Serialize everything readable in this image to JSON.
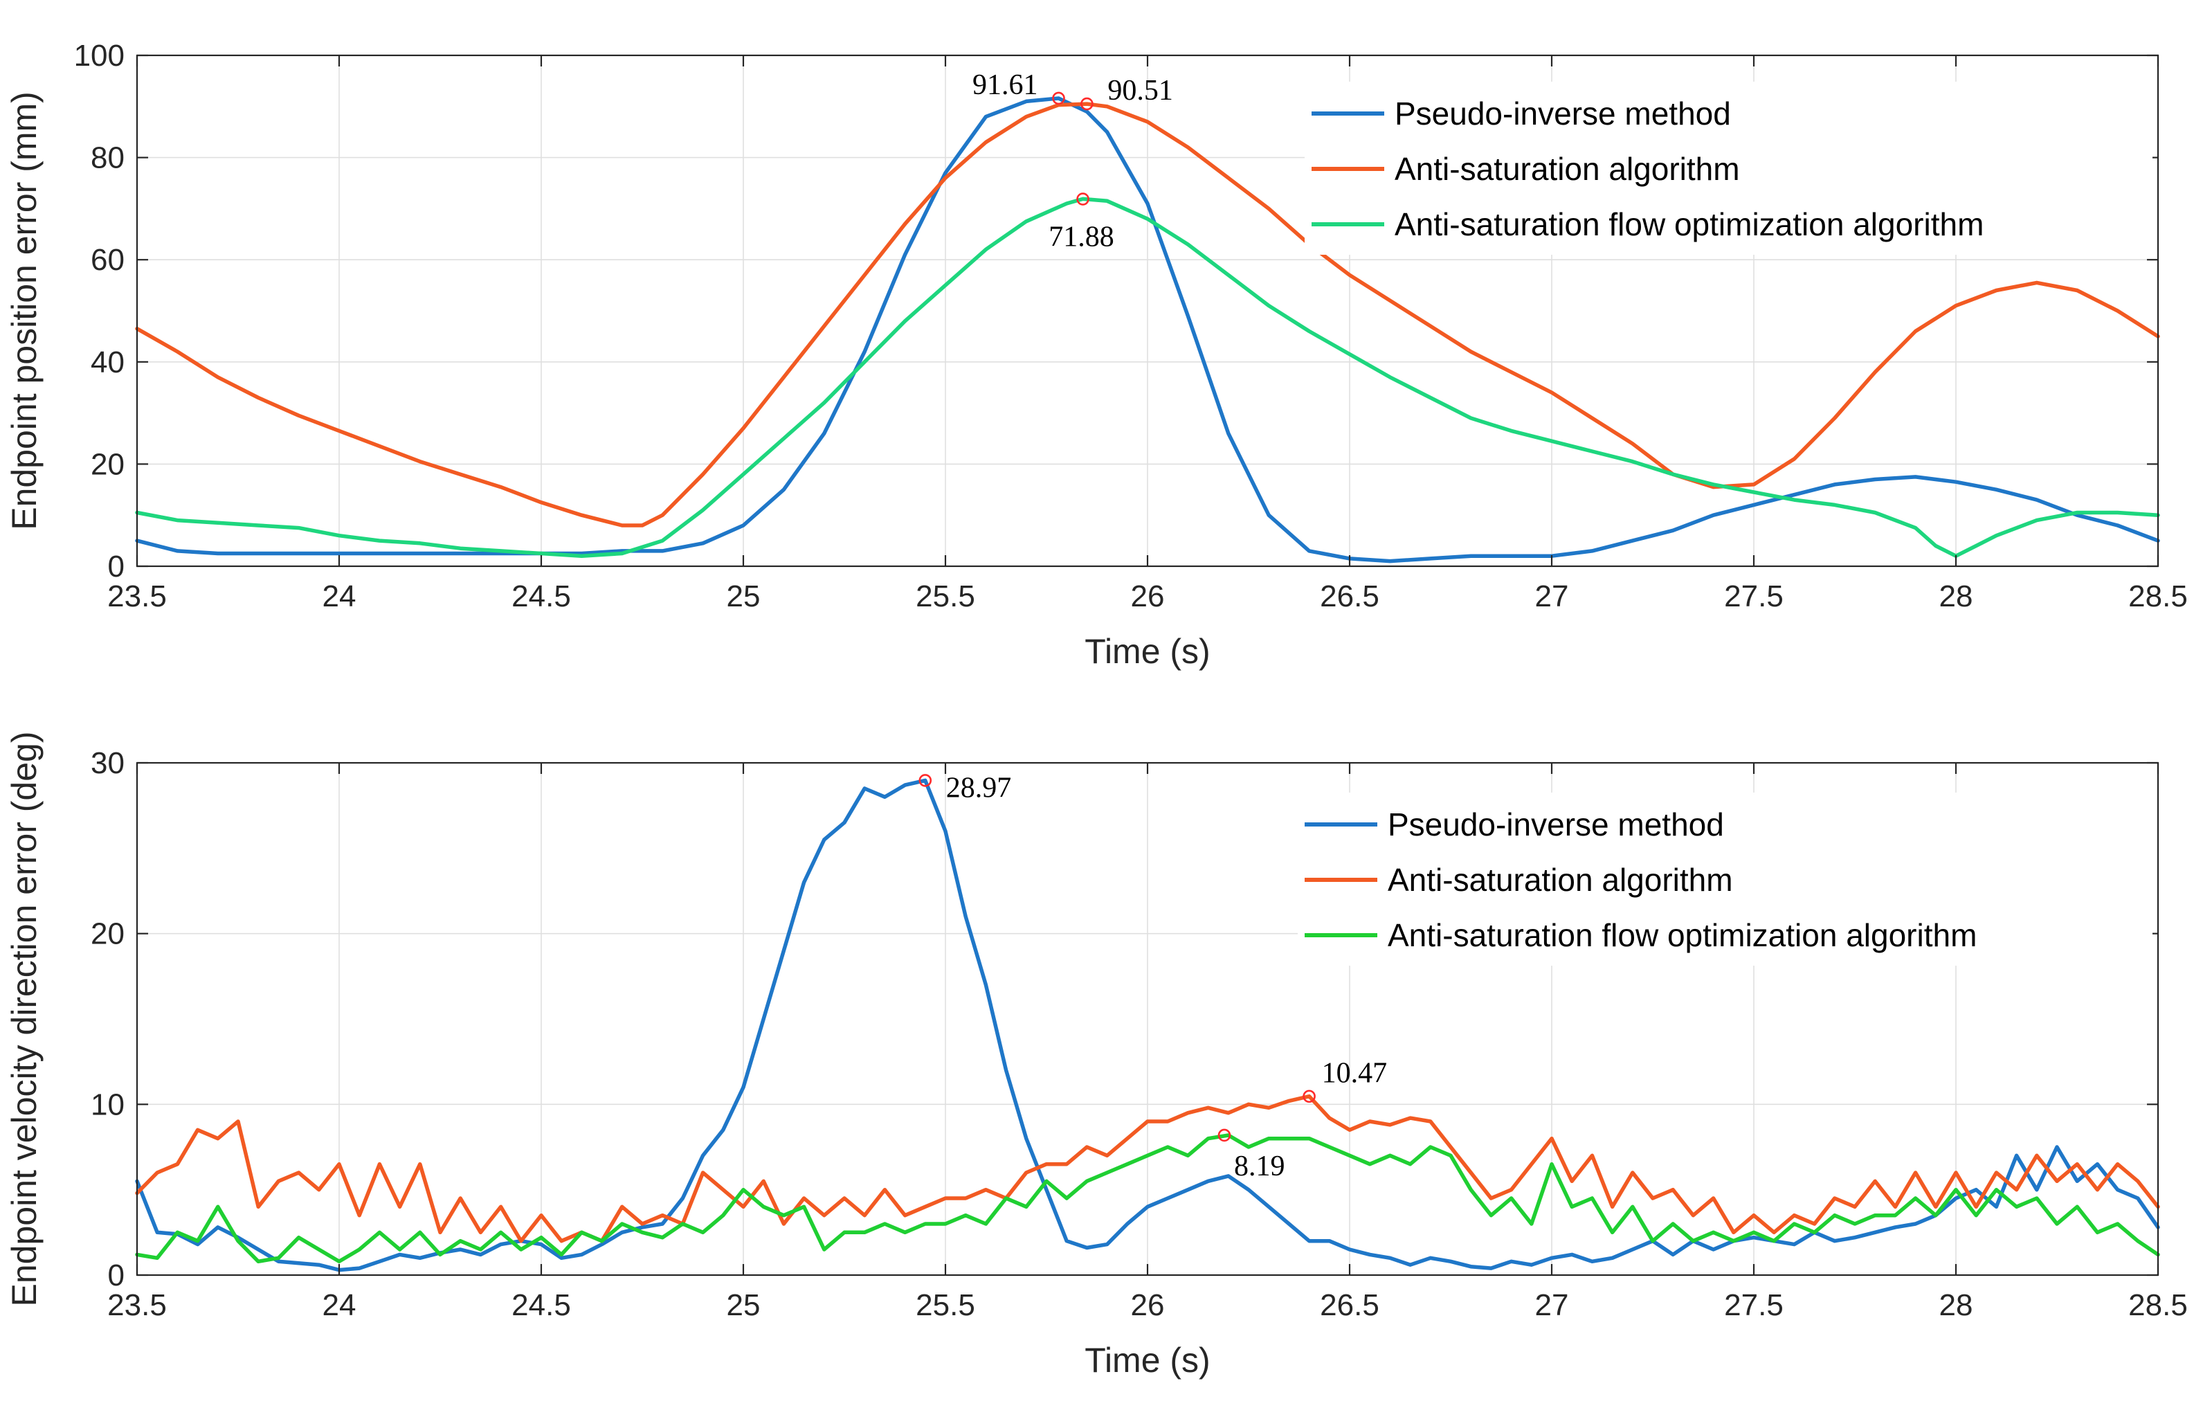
{
  "colors": {
    "blue": "#1f77c8",
    "orange": "#f25a22",
    "green_top": "#1ed67e",
    "green_bottom": "#1fcf32",
    "marker": "#ff2a2a"
  },
  "chart_data": [
    {
      "type": "line",
      "xlabel": "Time (s)",
      "ylabel": "Endpoint position error (mm)",
      "xlim": [
        23.5,
        28.5
      ],
      "ylim": [
        0,
        100
      ],
      "xticks": [
        23.5,
        24,
        24.5,
        25,
        25.5,
        26,
        26.5,
        27,
        27.5,
        28,
        28.5
      ],
      "xtick_labels": [
        "23.5",
        "24",
        "24.5",
        "25",
        "25.5",
        "26",
        "26.5",
        "27",
        "27.5",
        "28",
        "28.5"
      ],
      "yticks": [
        0,
        20,
        40,
        60,
        80,
        100
      ],
      "ytick_labels": [
        "0",
        "20",
        "40",
        "60",
        "80",
        "100"
      ],
      "grid": true,
      "legend_position": "top-right",
      "series": [
        {
          "name": "Pseudo-inverse method",
          "color": "#1f77c8",
          "x": [
            23.5,
            23.6,
            23.7,
            23.8,
            23.9,
            24.0,
            24.1,
            24.2,
            24.3,
            24.4,
            24.5,
            24.6,
            24.7,
            24.8,
            24.9,
            25.0,
            25.1,
            25.2,
            25.3,
            25.4,
            25.5,
            25.6,
            25.7,
            25.78,
            25.85,
            25.9,
            26.0,
            26.1,
            26.2,
            26.3,
            26.4,
            26.5,
            26.6,
            26.7,
            26.8,
            26.9,
            27.0,
            27.1,
            27.2,
            27.3,
            27.4,
            27.5,
            27.6,
            27.7,
            27.8,
            27.9,
            28.0,
            28.1,
            28.2,
            28.3,
            28.4,
            28.5
          ],
          "y": [
            5,
            3,
            2.5,
            2.5,
            2.5,
            2.5,
            2.5,
            2.5,
            2.5,
            2.5,
            2.5,
            2.5,
            3,
            3,
            4.5,
            8,
            15,
            26,
            42,
            61,
            77,
            88,
            91,
            91.6,
            89,
            85,
            71,
            49,
            26,
            10,
            3,
            1.5,
            1,
            1.5,
            2,
            2,
            2,
            3,
            5,
            7,
            10,
            12,
            14,
            16,
            17,
            17.5,
            16.5,
            15,
            13,
            10,
            8,
            5
          ]
        },
        {
          "name": "Anti-saturation algorithm",
          "color": "#f25a22",
          "x": [
            23.5,
            23.6,
            23.7,
            23.8,
            23.9,
            24.0,
            24.1,
            24.2,
            24.3,
            24.4,
            24.5,
            24.6,
            24.7,
            24.75,
            24.8,
            24.9,
            25.0,
            25.1,
            25.2,
            25.3,
            25.4,
            25.5,
            25.6,
            25.7,
            25.78,
            25.85,
            25.9,
            26.0,
            26.1,
            26.2,
            26.3,
            26.4,
            26.5,
            26.6,
            26.7,
            26.8,
            26.9,
            27.0,
            27.1,
            27.2,
            27.3,
            27.4,
            27.5,
            27.6,
            27.7,
            27.8,
            27.9,
            28.0,
            28.1,
            28.2,
            28.3,
            28.4,
            28.5
          ],
          "y": [
            46.5,
            42,
            37,
            33,
            29.5,
            26.5,
            23.5,
            20.5,
            18,
            15.5,
            12.5,
            10,
            8,
            8,
            10,
            18,
            27,
            37,
            47,
            57,
            67,
            76,
            83,
            88,
            90.3,
            90.5,
            90,
            87,
            82,
            76,
            70,
            63,
            57,
            52,
            47,
            42,
            38,
            34,
            29,
            24,
            18,
            15.5,
            16,
            21,
            29,
            38,
            46,
            51,
            54,
            55.5,
            54,
            50,
            45
          ]
        },
        {
          "name": "Anti-saturation flow optimization algorithm",
          "color": "#1ed67e",
          "x": [
            23.5,
            23.6,
            23.7,
            23.8,
            23.9,
            24.0,
            24.1,
            24.2,
            24.3,
            24.4,
            24.5,
            24.6,
            24.7,
            24.8,
            24.9,
            25.0,
            25.1,
            25.2,
            25.3,
            25.4,
            25.5,
            25.6,
            25.7,
            25.8,
            25.84,
            25.9,
            26.0,
            26.1,
            26.2,
            26.3,
            26.4,
            26.5,
            26.6,
            26.7,
            26.8,
            26.9,
            27.0,
            27.1,
            27.2,
            27.3,
            27.4,
            27.5,
            27.6,
            27.7,
            27.8,
            27.9,
            27.95,
            28.0,
            28.05,
            28.1,
            28.2,
            28.3,
            28.4,
            28.5
          ],
          "y": [
            10.5,
            9,
            8.5,
            8,
            7.5,
            6,
            5,
            4.5,
            3.5,
            3,
            2.5,
            2,
            2.5,
            5,
            11,
            18,
            25,
            32,
            40,
            48,
            55,
            62,
            67.5,
            71,
            71.9,
            71.5,
            68,
            63,
            57,
            51,
            46,
            41.5,
            37,
            33,
            29,
            26.5,
            24.5,
            22.5,
            20.5,
            18,
            16,
            14.5,
            13,
            12,
            10.5,
            7.5,
            4,
            2,
            4,
            6,
            9,
            10.5,
            10.5,
            10
          ]
        }
      ],
      "annotations": [
        {
          "text": "91.61",
          "x": 25.78,
          "y": 91.61,
          "side": "left"
        },
        {
          "text": "90.51",
          "x": 25.85,
          "y": 90.51,
          "side": "right"
        },
        {
          "text": "71.88",
          "x": 25.84,
          "y": 71.88,
          "side": "below"
        }
      ]
    },
    {
      "type": "line",
      "xlabel": "Time (s)",
      "ylabel": "Endpoint velocity direction error (deg)",
      "xlim": [
        23.5,
        28.5
      ],
      "ylim": [
        0,
        30
      ],
      "xticks": [
        23.5,
        24,
        24.5,
        25,
        25.5,
        26,
        26.5,
        27,
        27.5,
        28,
        28.5
      ],
      "xtick_labels": [
        "23.5",
        "24",
        "24.5",
        "25",
        "25.5",
        "26",
        "26.5",
        "27",
        "27.5",
        "28",
        "28.5"
      ],
      "yticks": [
        0,
        10,
        20,
        30
      ],
      "ytick_labels": [
        "0",
        "10",
        "20",
        "30"
      ],
      "grid": true,
      "legend_position": "top-right",
      "series": [
        {
          "name": "Pseudo-inverse method",
          "color": "#1f77c8",
          "x": [
            23.5,
            23.55,
            23.6,
            23.65,
            23.7,
            23.75,
            23.8,
            23.85,
            23.9,
            23.95,
            24.0,
            24.05,
            24.1,
            24.15,
            24.2,
            24.25,
            24.3,
            24.35,
            24.4,
            24.45,
            24.5,
            24.55,
            24.6,
            24.65,
            24.7,
            24.75,
            24.8,
            24.85,
            24.9,
            24.95,
            25.0,
            25.05,
            25.1,
            25.15,
            25.2,
            25.25,
            25.3,
            25.35,
            25.4,
            25.45,
            25.5,
            25.55,
            25.6,
            25.65,
            25.7,
            25.75,
            25.8,
            25.85,
            25.9,
            25.95,
            26.0,
            26.05,
            26.1,
            26.15,
            26.2,
            26.25,
            26.3,
            26.35,
            26.4,
            26.45,
            26.5,
            26.55,
            26.6,
            26.65,
            26.7,
            26.75,
            26.8,
            26.85,
            26.9,
            26.95,
            27.0,
            27.05,
            27.1,
            27.15,
            27.2,
            27.25,
            27.3,
            27.35,
            27.4,
            27.45,
            27.5,
            27.55,
            27.6,
            27.65,
            27.7,
            27.75,
            27.8,
            27.85,
            27.9,
            27.95,
            28.0,
            28.05,
            28.1,
            28.15,
            28.2,
            28.25,
            28.3,
            28.35,
            28.4,
            28.45,
            28.5
          ],
          "y": [
            5.5,
            2.5,
            2.4,
            1.8,
            2.8,
            2.2,
            1.5,
            0.8,
            0.7,
            0.6,
            0.3,
            0.4,
            0.8,
            1.2,
            1.0,
            1.3,
            1.5,
            1.2,
            1.8,
            2.0,
            1.8,
            1.0,
            1.2,
            1.8,
            2.5,
            2.8,
            3.0,
            4.5,
            7.0,
            8.5,
            11.0,
            15.0,
            19.0,
            23.0,
            25.5,
            26.5,
            28.5,
            28.0,
            28.7,
            28.97,
            26.0,
            21.0,
            17.0,
            12.0,
            8.0,
            5.0,
            2.0,
            1.6,
            1.8,
            3.0,
            4.0,
            4.5,
            5.0,
            5.5,
            5.8,
            5.0,
            4.0,
            3.0,
            2.0,
            2.0,
            1.5,
            1.2,
            1.0,
            0.6,
            1.0,
            0.8,
            0.5,
            0.4,
            0.8,
            0.6,
            1.0,
            1.2,
            0.8,
            1.0,
            1.5,
            2.0,
            1.2,
            2.0,
            1.5,
            2.0,
            2.2,
            2.0,
            1.8,
            2.5,
            2.0,
            2.2,
            2.5,
            2.8,
            3.0,
            3.5,
            4.5,
            5.0,
            4.0,
            7.0,
            5.0,
            7.5,
            5.5,
            6.5,
            5.0,
            4.5,
            2.8
          ]
        },
        {
          "name": "Anti-saturation algorithm",
          "color": "#f25a22",
          "x": [
            23.5,
            23.55,
            23.6,
            23.65,
            23.7,
            23.75,
            23.8,
            23.85,
            23.9,
            23.95,
            24.0,
            24.05,
            24.1,
            24.15,
            24.2,
            24.25,
            24.3,
            24.35,
            24.4,
            24.45,
            24.5,
            24.55,
            24.6,
            24.65,
            24.7,
            24.75,
            24.8,
            24.85,
            24.9,
            24.95,
            25.0,
            25.05,
            25.1,
            25.15,
            25.2,
            25.25,
            25.3,
            25.35,
            25.4,
            25.45,
            25.5,
            25.55,
            25.6,
            25.65,
            25.7,
            25.75,
            25.8,
            25.85,
            25.9,
            25.95,
            26.0,
            26.05,
            26.1,
            26.15,
            26.2,
            26.25,
            26.3,
            26.35,
            26.4,
            26.45,
            26.5,
            26.55,
            26.6,
            26.65,
            26.7,
            26.75,
            26.8,
            26.85,
            26.9,
            26.95,
            27.0,
            27.05,
            27.1,
            27.15,
            27.2,
            27.25,
            27.3,
            27.35,
            27.4,
            27.45,
            27.5,
            27.55,
            27.6,
            27.65,
            27.7,
            27.75,
            27.8,
            27.85,
            27.9,
            27.95,
            28.0,
            28.05,
            28.1,
            28.15,
            28.2,
            28.25,
            28.3,
            28.35,
            28.4,
            28.45,
            28.5
          ],
          "y": [
            4.8,
            6.0,
            6.5,
            8.5,
            8.0,
            9.0,
            4.0,
            5.5,
            6.0,
            5.0,
            6.5,
            3.5,
            6.5,
            4.0,
            6.5,
            2.5,
            4.5,
            2.5,
            4.0,
            2.0,
            3.5,
            2.0,
            2.5,
            2.0,
            4.0,
            3.0,
            3.5,
            3.0,
            6.0,
            5.0,
            4.0,
            5.5,
            3.0,
            4.5,
            3.5,
            4.5,
            3.5,
            5.0,
            3.5,
            4.0,
            4.5,
            4.5,
            5.0,
            4.5,
            6.0,
            6.5,
            6.5,
            7.5,
            7.0,
            8.0,
            9.0,
            9.0,
            9.5,
            9.8,
            9.5,
            10.0,
            9.8,
            10.2,
            10.47,
            9.2,
            8.5,
            9.0,
            8.8,
            9.2,
            9.0,
            7.5,
            6.0,
            4.5,
            5.0,
            6.5,
            8.0,
            5.5,
            7.0,
            4.0,
            6.0,
            4.5,
            5.0,
            3.5,
            4.5,
            2.5,
            3.5,
            2.5,
            3.5,
            3.0,
            4.5,
            4.0,
            5.5,
            4.0,
            6.0,
            4.0,
            6.0,
            4.0,
            6.0,
            5.0,
            7.0,
            5.5,
            6.5,
            5.0,
            6.5,
            5.5,
            4.0
          ]
        },
        {
          "name": "Anti-saturation flow optimization algorithm",
          "color": "#1fcf32",
          "x": [
            23.5,
            23.55,
            23.6,
            23.65,
            23.7,
            23.75,
            23.8,
            23.85,
            23.9,
            23.95,
            24.0,
            24.05,
            24.1,
            24.15,
            24.2,
            24.25,
            24.3,
            24.35,
            24.4,
            24.45,
            24.5,
            24.55,
            24.6,
            24.65,
            24.7,
            24.75,
            24.8,
            24.85,
            24.9,
            24.95,
            25.0,
            25.05,
            25.1,
            25.15,
            25.2,
            25.25,
            25.3,
            25.35,
            25.4,
            25.45,
            25.5,
            25.55,
            25.6,
            25.65,
            25.7,
            25.75,
            25.8,
            25.85,
            25.9,
            25.95,
            26.0,
            26.05,
            26.1,
            26.15,
            26.2,
            26.25,
            26.3,
            26.35,
            26.4,
            26.45,
            26.5,
            26.55,
            26.6,
            26.65,
            26.7,
            26.75,
            26.8,
            26.85,
            26.9,
            26.95,
            27.0,
            27.05,
            27.1,
            27.15,
            27.2,
            27.25,
            27.3,
            27.35,
            27.4,
            27.45,
            27.5,
            27.55,
            27.6,
            27.65,
            27.7,
            27.75,
            27.8,
            27.85,
            27.9,
            27.95,
            28.0,
            28.05,
            28.1,
            28.15,
            28.2,
            28.25,
            28.3,
            28.35,
            28.4,
            28.45,
            28.5
          ],
          "y": [
            1.2,
            1.0,
            2.5,
            2.0,
            4.0,
            2.0,
            0.8,
            1.0,
            2.2,
            1.5,
            0.8,
            1.5,
            2.5,
            1.5,
            2.5,
            1.2,
            2.0,
            1.5,
            2.5,
            1.5,
            2.2,
            1.2,
            2.5,
            2.0,
            3.0,
            2.5,
            2.2,
            3.0,
            2.5,
            3.5,
            5.0,
            4.0,
            3.5,
            4.0,
            1.5,
            2.5,
            2.5,
            3.0,
            2.5,
            3.0,
            3.0,
            3.5,
            3.0,
            4.5,
            4.0,
            5.5,
            4.5,
            5.5,
            6.0,
            6.5,
            7.0,
            7.5,
            7.0,
            8.0,
            8.19,
            7.5,
            8.0,
            8.0,
            8.0,
            7.5,
            7.0,
            6.5,
            7.0,
            6.5,
            7.5,
            7.0,
            5.0,
            3.5,
            4.5,
            3.0,
            6.5,
            4.0,
            4.5,
            2.5,
            4.0,
            2.0,
            3.0,
            2.0,
            2.5,
            2.0,
            2.5,
            2.0,
            3.0,
            2.5,
            3.5,
            3.0,
            3.5,
            3.5,
            4.5,
            3.5,
            5.0,
            3.5,
            5.0,
            4.0,
            4.5,
            3.0,
            4.0,
            2.5,
            3.0,
            2.0,
            1.2
          ]
        }
      ],
      "annotations": [
        {
          "text": "28.97",
          "x": 25.45,
          "y": 28.97,
          "side": "right"
        },
        {
          "text": "10.47",
          "x": 26.4,
          "y": 10.47,
          "side": "above-right"
        },
        {
          "text": "8.19",
          "x": 26.19,
          "y": 8.19,
          "side": "below-right"
        }
      ]
    }
  ]
}
